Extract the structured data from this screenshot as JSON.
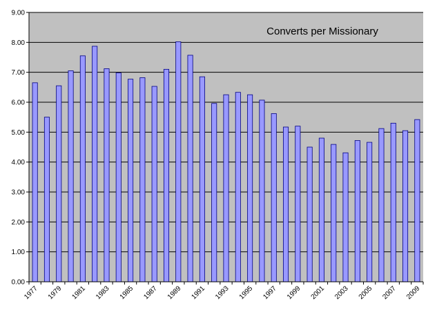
{
  "colors": {
    "plot_background": "#c0c0c0",
    "bar_fill": "#9999ff",
    "bar_stroke": "#000080",
    "gridline": "#000000",
    "axis": "#000000"
  },
  "chart_data": {
    "type": "bar",
    "title": "Converts per Missionary",
    "legend": "none",
    "grid": true,
    "xlabel": "",
    "ylabel": "",
    "ylim": [
      0,
      9
    ],
    "y_ticks": [
      "0.00",
      "1.00",
      "2.00",
      "3.00",
      "4.00",
      "5.00",
      "6.00",
      "7.00",
      "8.00",
      "9.00"
    ],
    "categories": [
      "1977",
      "1978",
      "1979",
      "1980",
      "1981",
      "1982",
      "1983",
      "1984",
      "1985",
      "1986",
      "1987",
      "1988",
      "1989",
      "1990",
      "1991",
      "1992",
      "1993",
      "1994",
      "1995",
      "1996",
      "1997",
      "1998",
      "1999",
      "2000",
      "2001",
      "2002",
      "2003",
      "2004",
      "2005",
      "2006",
      "2007",
      "2008",
      "2009"
    ],
    "x_tick_labels": [
      "1977",
      "1979",
      "1981",
      "1983",
      "1985",
      "1987",
      "1989",
      "1991",
      "1993",
      "1995",
      "1997",
      "1999",
      "2001",
      "2003",
      "2005",
      "2007",
      "2009"
    ],
    "values": [
      6.65,
      5.5,
      6.55,
      7.05,
      7.55,
      7.87,
      7.12,
      6.98,
      6.77,
      6.82,
      6.53,
      7.1,
      8.02,
      7.57,
      6.85,
      5.96,
      6.25,
      6.33,
      6.25,
      6.07,
      5.62,
      5.17,
      5.2,
      4.5,
      4.8,
      4.59,
      4.31,
      4.72,
      4.66,
      5.12,
      5.3,
      5.05,
      5.42
    ]
  }
}
